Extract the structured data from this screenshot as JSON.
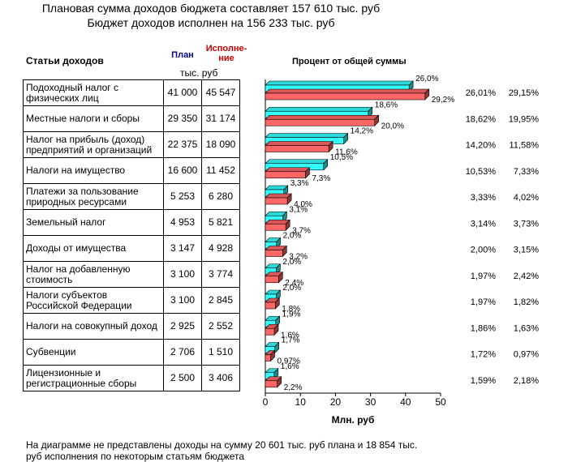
{
  "header": {
    "line1": "Плановая сумма доходов бюджета составляет 157 610 тыс. руб",
    "line2": "Бюджет доходов исполнен на 156 233 тыс. руб",
    "col_items": "Статьи доходов",
    "col_plan": "План",
    "col_exec_1": "Исполне-",
    "col_exec_2": "ние",
    "unit": "тыс. руб",
    "chart_title": "Процент от общей суммы"
  },
  "rows": [
    {
      "name": "Подоходный налог с физических лиц",
      "plan": "41 000",
      "exec": "45 547",
      "pct_plan": "26,01%",
      "pct_exec": "29,15%"
    },
    {
      "name": "Местные налоги и сборы",
      "plan": "29 350",
      "exec": "31 174",
      "pct_plan": "18,62%",
      "pct_exec": "19,95%"
    },
    {
      "name": "Налог на прибыль (доход) предприятий и организаций",
      "plan": "22 375",
      "exec": "18 090",
      "pct_plan": "14,20%",
      "pct_exec": "11,58%"
    },
    {
      "name": "Налоги на имущество",
      "plan": "16 600",
      "exec": "11 452",
      "pct_plan": "10,53%",
      "pct_exec": "7,33%"
    },
    {
      "name": "Платежи за пользование природных ресурсами",
      "plan": "5 253",
      "exec": "6 280",
      "pct_plan": "3,33%",
      "pct_exec": "4,02%"
    },
    {
      "name": "Земельный налог",
      "plan": "4 953",
      "exec": "5 821",
      "pct_plan": "3,14%",
      "pct_exec": "3,73%"
    },
    {
      "name": "Доходы от имущества",
      "plan": "3 147",
      "exec": "4 928",
      "pct_plan": "2,00%",
      "pct_exec": "3,15%"
    },
    {
      "name": "Налог на добавленную стоимость",
      "plan": "3 100",
      "exec": "3 774",
      "pct_plan": "1,97%",
      "pct_exec": "2,42%"
    },
    {
      "name": "Налоги субъектов Российской Федерации",
      "plan": "3 100",
      "exec": "2 845",
      "pct_plan": "1,97%",
      "pct_exec": "1,82%"
    },
    {
      "name": "Налоги на совокупный доход",
      "plan": "2 925",
      "exec": "2 552",
      "pct_plan": "1,86%",
      "pct_exec": "1,63%"
    },
    {
      "name": "Субвенции",
      "plan": "2 706",
      "exec": "1 510",
      "pct_plan": "1,72%",
      "pct_exec": "0,97%"
    },
    {
      "name": "Лицензионные и регистрационные сборы",
      "plan": "2 500",
      "exec": "3 406",
      "pct_plan": "1,59%",
      "pct_exec": "2,18%"
    }
  ],
  "footnote": {
    "line1": "На диаграмме не представлены доходы на сумму 20 601 тыс. руб плана и 18 854 тыс.",
    "line2": "руб исполнения по некоторым статьям бюджета"
  },
  "chart_data": {
    "type": "bar",
    "orientation": "horizontal",
    "title": "Процент от общей суммы",
    "xlabel": "Млн. руб",
    "xlim": [
      0,
      50
    ],
    "xticks": [
      "0",
      "10",
      "20",
      "30",
      "40",
      "50"
    ],
    "colors": {
      "plan": "#33ffff",
      "exec": "#ff6666"
    },
    "series": [
      {
        "name": "План",
        "values": [
          41.0,
          29.35,
          22.375,
          16.6,
          5.253,
          4.953,
          3.147,
          3.1,
          3.1,
          2.925,
          2.706,
          2.5
        ],
        "labels": [
          "26,0%",
          "18,6%",
          "14,2%",
          "10,5%",
          "3,3%",
          "3,1%",
          "2,0%",
          "2,0%",
          "2,0%",
          "1,9%",
          "1,7%",
          "1,6%"
        ]
      },
      {
        "name": "Исполнение",
        "values": [
          45.547,
          31.174,
          18.09,
          11.452,
          6.28,
          5.821,
          4.928,
          3.774,
          2.845,
          2.552,
          1.51,
          3.406
        ],
        "labels": [
          "29,2%",
          "20,0%",
          "11,6%",
          "7,3%",
          "4,0%",
          "3,7%",
          "3,2%",
          "2,4%",
          "1,8%",
          "1,6%",
          "0,97%",
          "2,2%"
        ]
      }
    ]
  }
}
